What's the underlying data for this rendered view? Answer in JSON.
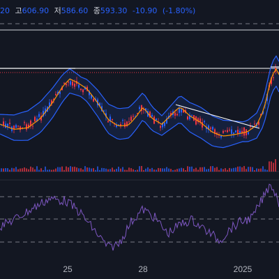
{
  "legend": {
    "open_value": "20",
    "high_label": "고",
    "high_value": "606.90",
    "low_label": "저",
    "low_value": "586.60",
    "close_label": "종",
    "close_value": "593.30",
    "change": "-10.90",
    "change_pct": "(-1.80%)"
  },
  "colors": {
    "background": "#131722",
    "up": "#f23645",
    "down": "#2962ff",
    "bollinger": "#2962ff",
    "moving_average": "#ff9800",
    "trendline": "#ffffff",
    "rsi": "#7e57c2",
    "grid": "#2a2e39"
  },
  "chart_data": [
    {
      "type": "line",
      "panel": "price",
      "series": [],
      "indicators": [
        "candlesticks",
        "bollinger-bands",
        "moving-average",
        "trendlines",
        "volume"
      ],
      "x_tick_labels": [
        "25",
        "28",
        "2025"
      ],
      "resistance_high": 606.9,
      "last_close": 593.3
    },
    {
      "type": "line",
      "panel": "rsi",
      "guide_lines": 4,
      "x_tick_labels": [
        "25",
        "28",
        "2025"
      ]
    }
  ],
  "x_axis": {
    "ticks": [
      "25",
      "28",
      "2025"
    ]
  }
}
